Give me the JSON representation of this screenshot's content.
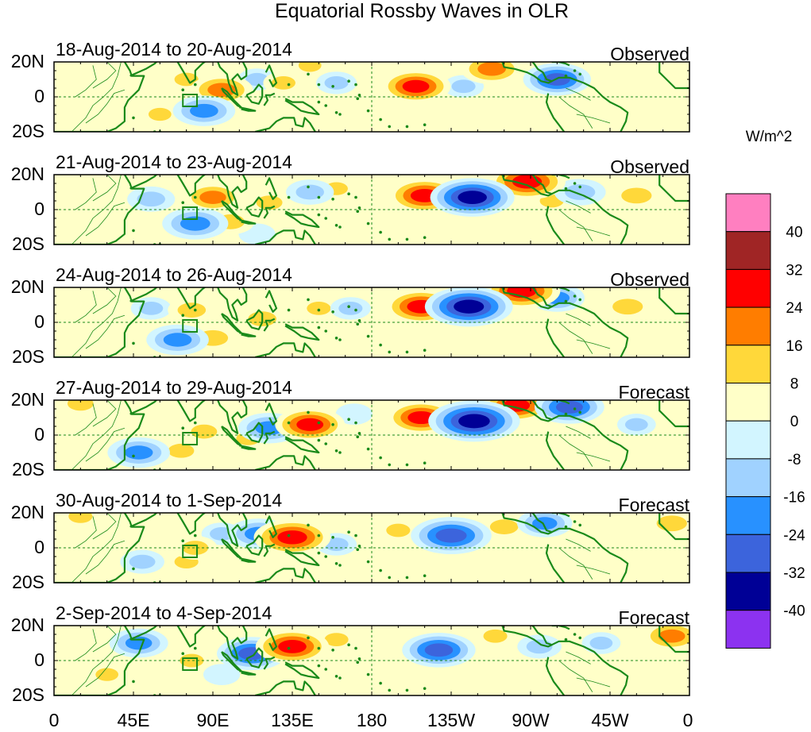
{
  "chart_data": {
    "type": "heatmap",
    "title": "Equatorial Rossby Waves in OLR",
    "units": "W/m^2",
    "lat_ticks": [
      "20N",
      "0",
      "20S"
    ],
    "lon_ticks": [
      "0",
      "45E",
      "90E",
      "135E",
      "180",
      "135W",
      "90W",
      "45W",
      "0"
    ],
    "lat_range": [
      -20,
      20
    ],
    "lon_range": [
      0,
      360
    ],
    "colorbar": {
      "levels": [
        40,
        32,
        24,
        16,
        8,
        0,
        -8,
        -16,
        -24,
        -32,
        -40
      ],
      "level_labels": [
        "40",
        "32",
        "24",
        "16",
        "8",
        "0",
        "-8",
        "-16",
        "-24",
        "-32",
        "-40"
      ],
      "colors": [
        "#ff7fc0",
        "#a02525",
        "#ff0000",
        "#ff7d00",
        "#ffd83a",
        "#ffffc8",
        "#d2f5ff",
        "#a0d2ff",
        "#2891ff",
        "#3c64dc",
        "#000096",
        "#8c32f0"
      ]
    },
    "panels": [
      {
        "date": "18-Aug-2014 to 20-Aug-2014",
        "kind": "Observed",
        "features": [
          {
            "lon": 95,
            "lat": 4,
            "v": 22
          },
          {
            "lon": 75,
            "lat": 10,
            "v": 10
          },
          {
            "lon": 130,
            "lat": 8,
            "v": 10
          },
          {
            "lon": 145,
            "lat": 18,
            "v": 9
          },
          {
            "lon": 205,
            "lat": 6,
            "v": 26
          },
          {
            "lon": 248,
            "lat": 16,
            "v": 22
          },
          {
            "lon": 288,
            "lat": 5,
            "v": 14
          },
          {
            "lon": 85,
            "lat": -8,
            "v": -22
          },
          {
            "lon": 60,
            "lat": -10,
            "v": 9
          },
          {
            "lon": 160,
            "lat": 8,
            "v": -10
          },
          {
            "lon": 285,
            "lat": 10,
            "v": -25
          },
          {
            "lon": 232,
            "lat": 6,
            "v": -10
          },
          {
            "lon": 20,
            "lat": 8,
            "v": 8
          },
          {
            "lon": 115,
            "lat": 10,
            "v": -9
          }
        ]
      },
      {
        "date": "21-Aug-2014 to 23-Aug-2014",
        "kind": "Observed",
        "features": [
          {
            "lon": 90,
            "lat": 7,
            "v": 20
          },
          {
            "lon": 122,
            "lat": 4,
            "v": 12
          },
          {
            "lon": 210,
            "lat": 8,
            "v": 28
          },
          {
            "lon": 237,
            "lat": 7,
            "v": -34
          },
          {
            "lon": 268,
            "lat": 16,
            "v": 30
          },
          {
            "lon": 330,
            "lat": 8,
            "v": 16
          },
          {
            "lon": 282,
            "lat": 5,
            "v": 10
          },
          {
            "lon": 80,
            "lat": -8,
            "v": -24
          },
          {
            "lon": 100,
            "lat": -7,
            "v": 14
          },
          {
            "lon": 55,
            "lat": 6,
            "v": -14
          },
          {
            "lon": 145,
            "lat": 10,
            "v": -14
          },
          {
            "lon": 160,
            "lat": 12,
            "v": 9
          },
          {
            "lon": 298,
            "lat": 10,
            "v": -16
          },
          {
            "lon": 115,
            "lat": -14,
            "v": -8
          }
        ]
      },
      {
        "date": "24-Aug-2014 to 26-Aug-2014",
        "kind": "Observed",
        "features": [
          {
            "lon": 78,
            "lat": 7,
            "v": 14
          },
          {
            "lon": 118,
            "lat": 2,
            "v": 14
          },
          {
            "lon": 150,
            "lat": 8,
            "v": 10
          },
          {
            "lon": 208,
            "lat": 9,
            "v": 28
          },
          {
            "lon": 235,
            "lat": 9,
            "v": -36
          },
          {
            "lon": 265,
            "lat": 18,
            "v": 30
          },
          {
            "lon": 325,
            "lat": 9,
            "v": 16
          },
          {
            "lon": 70,
            "lat": -10,
            "v": -22
          },
          {
            "lon": 90,
            "lat": -9,
            "v": 16
          },
          {
            "lon": 55,
            "lat": 8,
            "v": -10
          },
          {
            "lon": 168,
            "lat": 8,
            "v": -10
          },
          {
            "lon": 285,
            "lat": 14,
            "v": -18
          },
          {
            "lon": 30,
            "lat": -10,
            "v": 8
          }
        ]
      },
      {
        "date": "27-Aug-2014 to 29-Aug-2014",
        "kind": "Forecast",
        "features": [
          {
            "lon": 85,
            "lat": 2,
            "v": 12
          },
          {
            "lon": 110,
            "lat": -2,
            "v": 10
          },
          {
            "lon": 145,
            "lat": 6,
            "v": 26
          },
          {
            "lon": 208,
            "lat": 10,
            "v": 26
          },
          {
            "lon": 238,
            "lat": 8,
            "v": -38
          },
          {
            "lon": 262,
            "lat": 17,
            "v": 26
          },
          {
            "lon": 292,
            "lat": 16,
            "v": -26
          },
          {
            "lon": 48,
            "lat": -10,
            "v": -22
          },
          {
            "lon": 122,
            "lat": 4,
            "v": -22
          },
          {
            "lon": 72,
            "lat": -9,
            "v": 12
          },
          {
            "lon": 15,
            "lat": 18,
            "v": 12
          },
          {
            "lon": 330,
            "lat": 6,
            "v": -9
          },
          {
            "lon": 170,
            "lat": 12,
            "v": -8
          },
          {
            "lon": 230,
            "lat": -10,
            "v": 8
          }
        ]
      },
      {
        "date": "30-Aug-2014 to 1-Sep-2014",
        "kind": "Forecast",
        "features": [
          {
            "lon": 80,
            "lat": 0,
            "v": 12
          },
          {
            "lon": 135,
            "lat": 6,
            "v": 30
          },
          {
            "lon": 116,
            "lat": 8,
            "v": -22
          },
          {
            "lon": 195,
            "lat": 10,
            "v": 10
          },
          {
            "lon": 225,
            "lat": 7,
            "v": -32
          },
          {
            "lon": 255,
            "lat": 12,
            "v": 14
          },
          {
            "lon": 278,
            "lat": 14,
            "v": -18
          },
          {
            "lon": 350,
            "lat": 14,
            "v": 16
          },
          {
            "lon": 50,
            "lat": -8,
            "v": -12
          },
          {
            "lon": 75,
            "lat": -8,
            "v": 10
          },
          {
            "lon": 95,
            "lat": 8,
            "v": -10
          },
          {
            "lon": 160,
            "lat": 2,
            "v": -10
          },
          {
            "lon": 15,
            "lat": 18,
            "v": 10
          },
          {
            "lon": 315,
            "lat": 0,
            "v": 8
          }
        ]
      },
      {
        "date": "2-Sep-2014 to 4-Sep-2014",
        "kind": "Forecast",
        "features": [
          {
            "lon": 135,
            "lat": 8,
            "v": 28
          },
          {
            "lon": 112,
            "lat": 4,
            "v": -26
          },
          {
            "lon": 78,
            "lat": 0,
            "v": 10
          },
          {
            "lon": 48,
            "lat": 10,
            "v": -20
          },
          {
            "lon": 218,
            "lat": 6,
            "v": -28
          },
          {
            "lon": 250,
            "lat": 14,
            "v": 10
          },
          {
            "lon": 275,
            "lat": 8,
            "v": -12
          },
          {
            "lon": 350,
            "lat": 14,
            "v": 20
          },
          {
            "lon": 160,
            "lat": 12,
            "v": 10
          },
          {
            "lon": 95,
            "lat": -8,
            "v": -8
          },
          {
            "lon": 210,
            "lat": -8,
            "v": 8
          },
          {
            "lon": 30,
            "lat": -8,
            "v": 9
          },
          {
            "lon": 310,
            "lat": 10,
            "v": -9
          }
        ]
      }
    ]
  }
}
